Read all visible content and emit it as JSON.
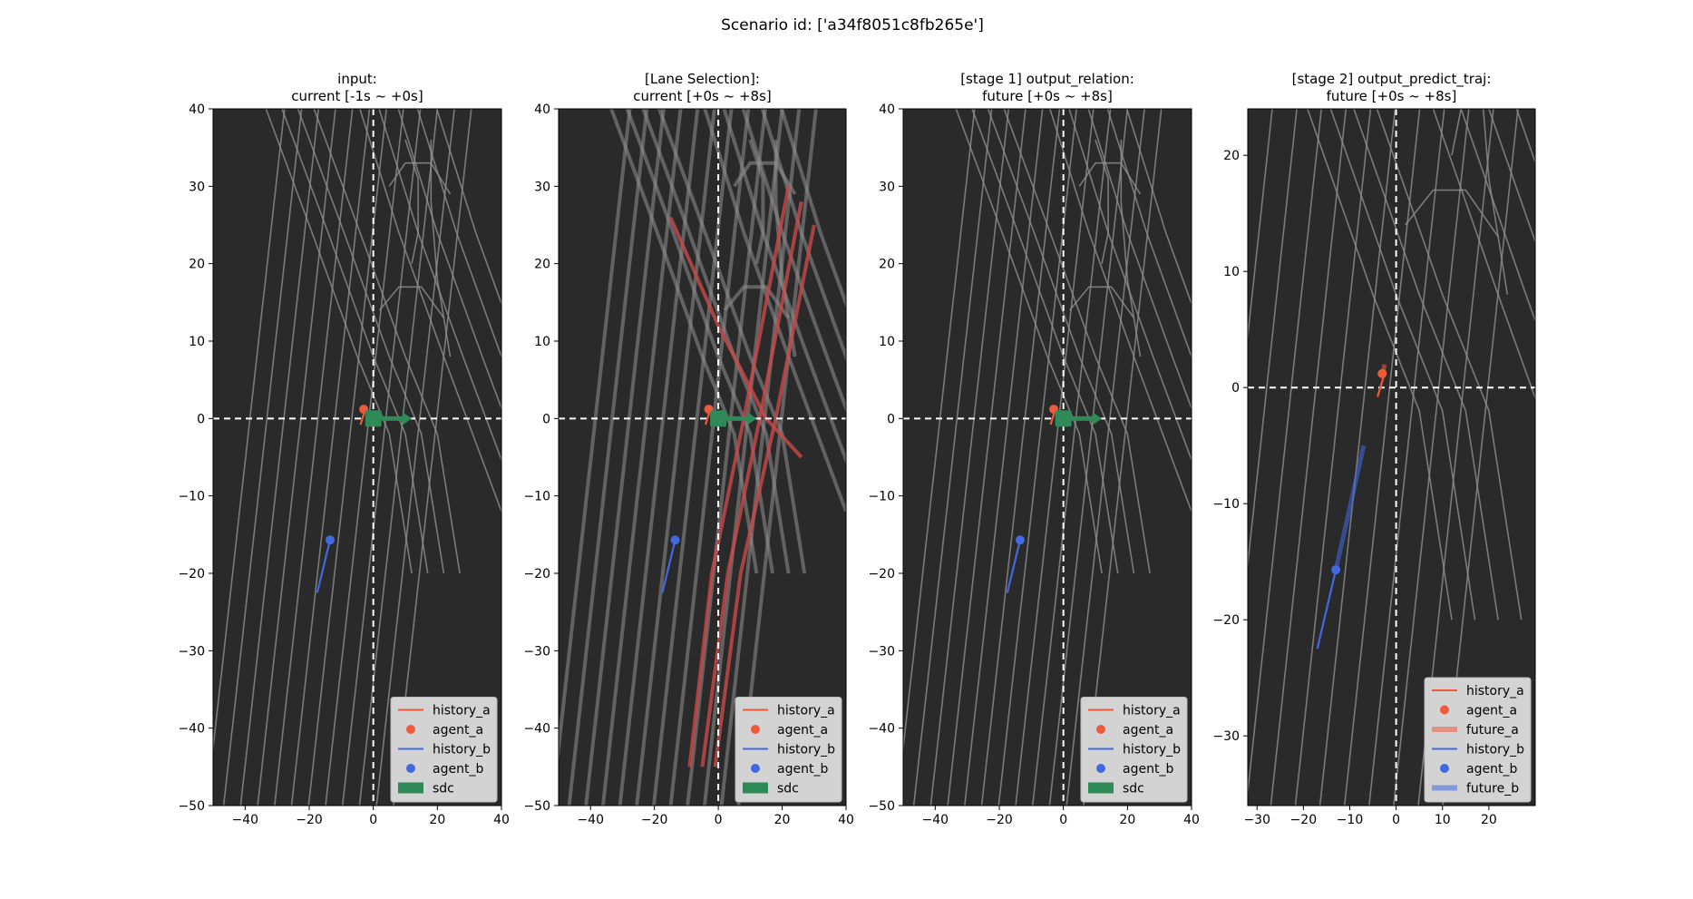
{
  "figure": {
    "suptitle": "Scenario id: ['a34f8051c8fb265e']",
    "colors": {
      "background": "#2a2a2a",
      "lane": "#909090",
      "lane_selected": "#c94a4a",
      "agent_a": "#f05a3c",
      "agent_b": "#4169e1",
      "sdc": "#2e8b57",
      "legend_bg": "#d3d3d3"
    }
  },
  "chart_data": [
    {
      "type": "line",
      "title": [
        "input:",
        "current [-1s ~ +0s]"
      ],
      "xlim": [
        -50,
        40
      ],
      "ylim": [
        -50,
        40
      ],
      "xticks": [
        -40,
        -20,
        0,
        20,
        40
      ],
      "yticks": [
        -50,
        -40,
        -30,
        -20,
        -10,
        0,
        10,
        20,
        30,
        40
      ],
      "series": [
        {
          "name": "history_a",
          "kind": "line",
          "points": [
            [
              -4,
              -0.8
            ],
            [
              -2.5,
              1.2
            ]
          ]
        },
        {
          "name": "agent_a",
          "kind": "point",
          "points": [
            [
              -3,
              1.2
            ]
          ]
        },
        {
          "name": "history_b",
          "kind": "line",
          "points": [
            [
              -17.5,
              -22.5
            ],
            [
              -13.5,
              -15.7
            ]
          ]
        },
        {
          "name": "agent_b",
          "kind": "point",
          "points": [
            [
              -13.5,
              -15.7
            ]
          ]
        },
        {
          "name": "sdc",
          "kind": "arrow",
          "points": [
            [
              0,
              0
            ],
            [
              12,
              0
            ]
          ]
        }
      ],
      "legend": [
        "history_a",
        "agent_a",
        "history_b",
        "agent_b",
        "sdc"
      ],
      "legend_loc": "lower right"
    },
    {
      "type": "line",
      "title": [
        "[Lane Selection]:",
        "current [+0s ~ +8s]"
      ],
      "xlim": [
        -50,
        40
      ],
      "ylim": [
        -50,
        40
      ],
      "xticks": [
        -40,
        -20,
        0,
        20,
        40
      ],
      "yticks": [
        -50,
        -40,
        -30,
        -20,
        -10,
        0,
        10,
        20,
        30,
        40
      ],
      "series": [
        {
          "name": "history_a",
          "kind": "line",
          "points": [
            [
              -4,
              -0.8
            ],
            [
              -2.5,
              1.2
            ]
          ]
        },
        {
          "name": "agent_a",
          "kind": "point",
          "points": [
            [
              -3,
              1.2
            ]
          ]
        },
        {
          "name": "history_b",
          "kind": "line",
          "points": [
            [
              -17.5,
              -22.5
            ],
            [
              -13.5,
              -15.7
            ]
          ]
        },
        {
          "name": "agent_b",
          "kind": "point",
          "points": [
            [
              -13.5,
              -15.7
            ]
          ]
        },
        {
          "name": "sdc",
          "kind": "arrow",
          "points": [
            [
              0,
              0
            ],
            [
              12,
              0
            ]
          ]
        }
      ],
      "legend": [
        "history_a",
        "agent_a",
        "history_b",
        "agent_b",
        "sdc"
      ],
      "legend_loc": "lower right"
    },
    {
      "type": "line",
      "title": [
        "[stage 1] output_relation:",
        "future [+0s ~ +8s]"
      ],
      "xlim": [
        -50,
        40
      ],
      "ylim": [
        -50,
        40
      ],
      "xticks": [
        -40,
        -20,
        0,
        20,
        40
      ],
      "yticks": [
        -50,
        -40,
        -30,
        -20,
        -10,
        0,
        10,
        20,
        30,
        40
      ],
      "series": [
        {
          "name": "history_a",
          "kind": "line",
          "points": [
            [
              -4,
              -0.8
            ],
            [
              -2.5,
              1.2
            ]
          ]
        },
        {
          "name": "agent_a",
          "kind": "point",
          "points": [
            [
              -3,
              1.2
            ]
          ]
        },
        {
          "name": "history_b",
          "kind": "line",
          "points": [
            [
              -17.5,
              -22.5
            ],
            [
              -13.5,
              -15.7
            ]
          ]
        },
        {
          "name": "agent_b",
          "kind": "point",
          "points": [
            [
              -13.5,
              -15.7
            ]
          ]
        },
        {
          "name": "sdc",
          "kind": "arrow",
          "points": [
            [
              0,
              0
            ],
            [
              12,
              0
            ]
          ]
        }
      ],
      "legend": [
        "history_a",
        "agent_a",
        "history_b",
        "agent_b",
        "sdc"
      ],
      "legend_loc": "lower right"
    },
    {
      "type": "line",
      "title": [
        "[stage 2] output_predict_traj:",
        "future [+0s ~ +8s]"
      ],
      "xlim": [
        -32,
        30
      ],
      "ylim": [
        -36,
        24
      ],
      "xticks": [
        -30,
        -20,
        -10,
        0,
        10,
        20
      ],
      "yticks": [
        -30,
        -20,
        -10,
        0,
        10,
        20
      ],
      "series": [
        {
          "name": "history_a",
          "kind": "line",
          "points": [
            [
              -4,
              -0.8
            ],
            [
              -2.5,
              1.2
            ]
          ]
        },
        {
          "name": "agent_a",
          "kind": "point",
          "points": [
            [
              -3,
              1.2
            ]
          ]
        },
        {
          "name": "future_a",
          "kind": "future",
          "points": [
            [
              -2.8,
              1.2
            ],
            [
              -2.5,
              2.0
            ]
          ]
        },
        {
          "name": "history_b",
          "kind": "line",
          "points": [
            [
              -17,
              -22.5
            ],
            [
              -13,
              -15.7
            ]
          ]
        },
        {
          "name": "agent_b",
          "kind": "point",
          "points": [
            [
              -13,
              -15.7
            ]
          ]
        },
        {
          "name": "future_b",
          "kind": "future",
          "points": [
            [
              -13,
              -15.7
            ],
            [
              -7,
              -5.0
            ]
          ]
        }
      ],
      "legend": [
        "history_a",
        "agent_a",
        "future_a",
        "history_b",
        "agent_b",
        "future_b"
      ],
      "legend_loc": "lower right"
    }
  ]
}
